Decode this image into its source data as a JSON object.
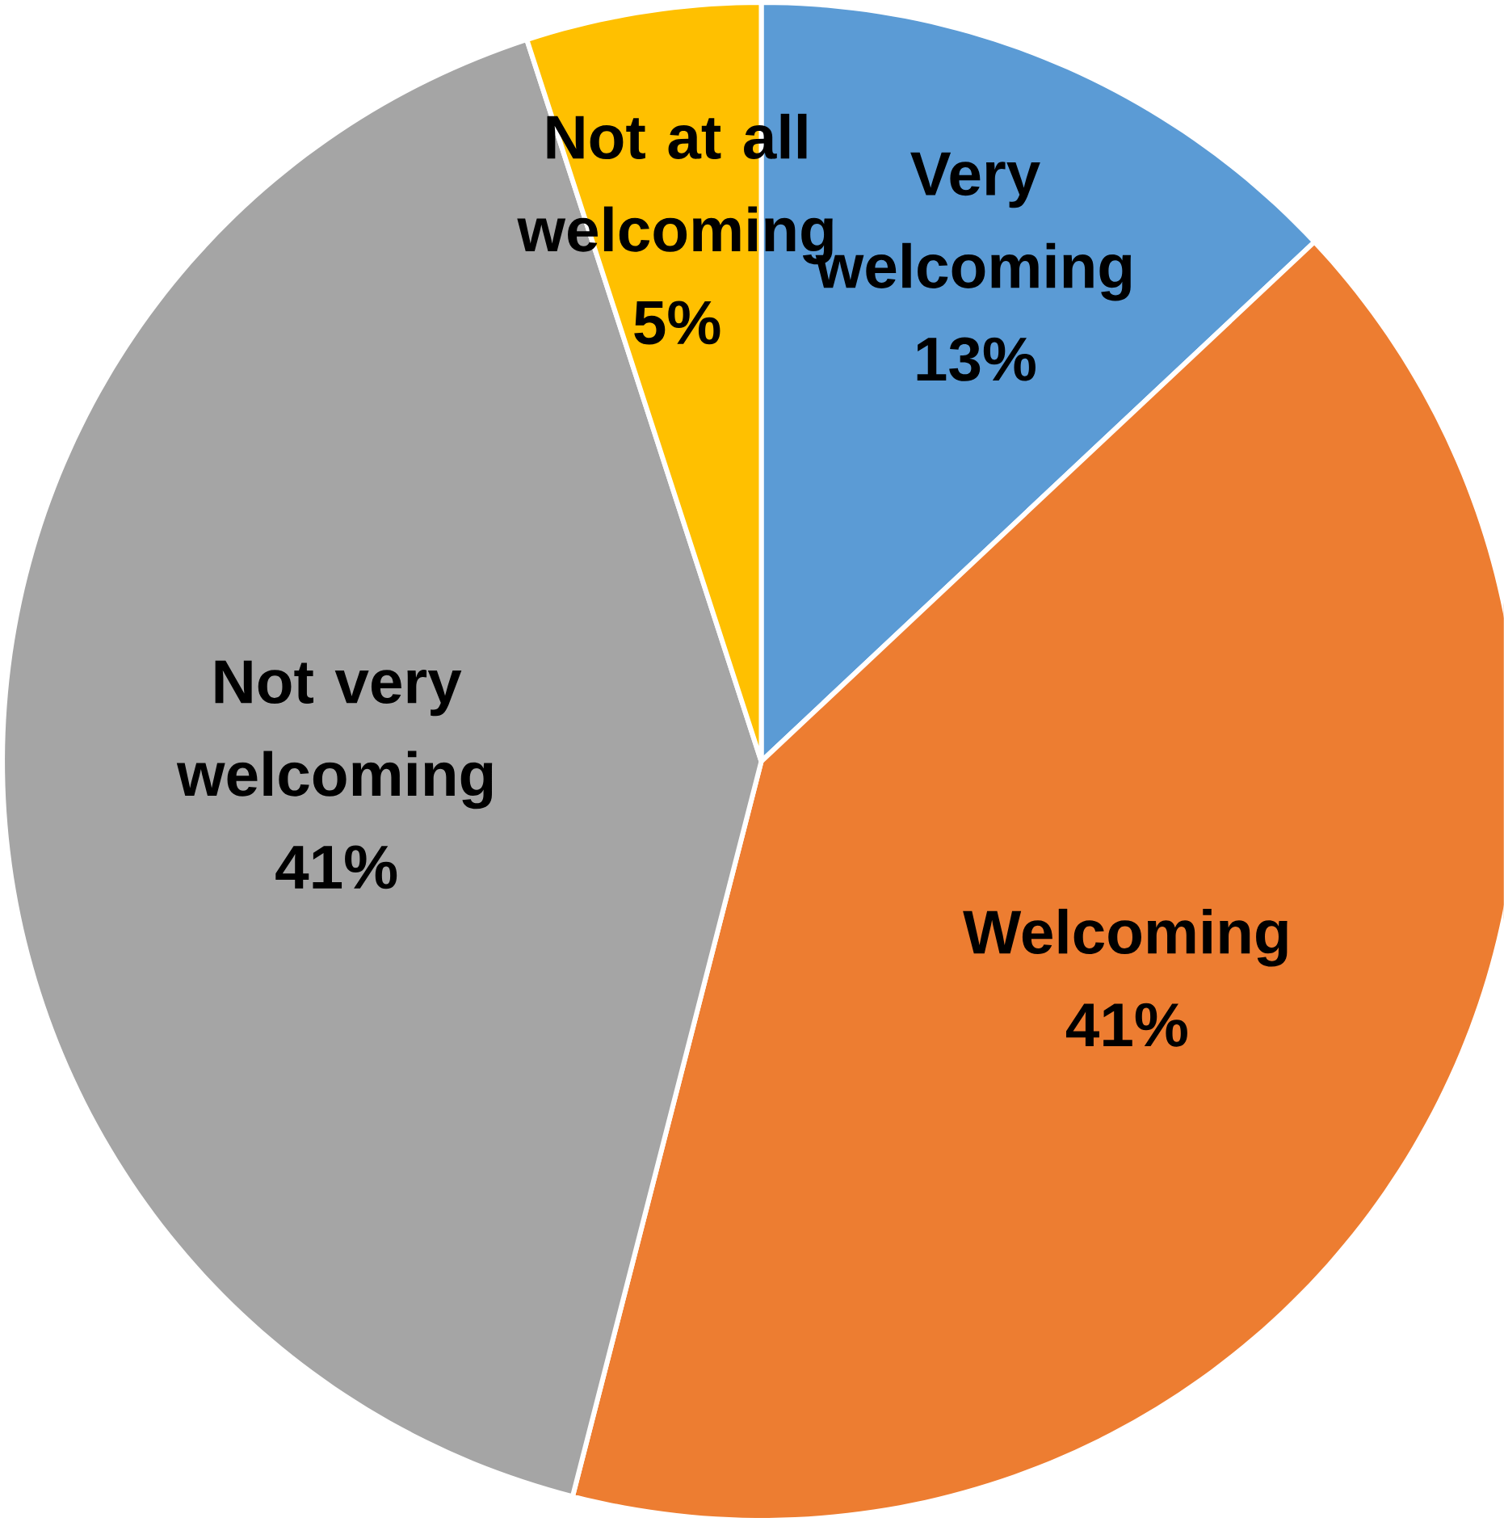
{
  "chart_data": {
    "type": "pie",
    "categories": [
      "Very welcoming",
      "Welcoming",
      "Not very welcoming",
      "Not at all welcoming"
    ],
    "values": [
      13,
      41,
      41,
      5
    ],
    "value_labels": [
      "13%",
      "41%",
      "41%",
      "5%"
    ],
    "colors": [
      "#5b9bd5",
      "#ed7d31",
      "#a5a5a5",
      "#ffc000"
    ]
  }
}
